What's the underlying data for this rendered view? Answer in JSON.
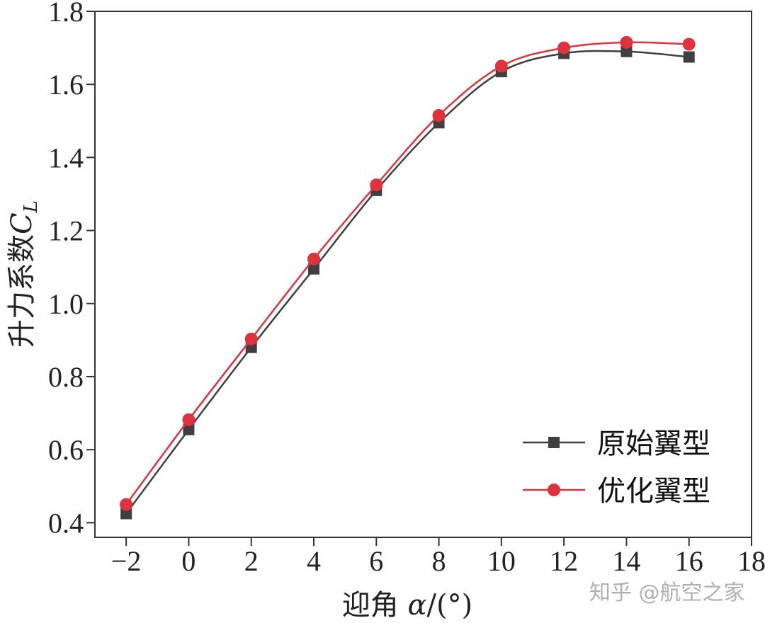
{
  "chart_data": {
    "type": "line",
    "xlabel_prefix": "迎角 ",
    "xlabel_symbol": "α",
    "xlabel_suffix": "/(°)",
    "ylabel_prefix": "升力系数",
    "ylabel_symbol": "C",
    "ylabel_subscript": "L",
    "xlim": [
      -3,
      18
    ],
    "ylim": [
      0.36,
      1.8
    ],
    "xticks": [
      -2,
      0,
      2,
      4,
      6,
      8,
      10,
      12,
      14,
      16,
      18
    ],
    "xtick_labels": [
      "−2",
      "0",
      "2",
      "4",
      "6",
      "8",
      "10",
      "12",
      "14",
      "16",
      "18"
    ],
    "yticks": [
      0.4,
      0.6,
      0.8,
      1.0,
      1.2,
      1.4,
      1.6,
      1.8
    ],
    "ytick_labels": [
      "0.4",
      "0.6",
      "0.8",
      "1.0",
      "1.2",
      "1.4",
      "1.6",
      "1.8"
    ],
    "x": [
      -2,
      0,
      2,
      4,
      6,
      8,
      10,
      12,
      14,
      16
    ],
    "series": [
      {
        "name": "原始翼型",
        "color": "#3f3f3f",
        "marker": "square",
        "values": [
          0.425,
          0.655,
          0.88,
          1.095,
          1.31,
          1.495,
          1.635,
          1.685,
          1.69,
          1.675
        ]
      },
      {
        "name": "优化翼型",
        "color": "#e0323c",
        "marker": "circle",
        "values": [
          0.45,
          0.682,
          0.903,
          1.122,
          1.325,
          1.515,
          1.65,
          1.7,
          1.715,
          1.71
        ]
      }
    ],
    "legend_position": "bottom-right",
    "grid": false
  },
  "watermark": "知乎 @航空之家"
}
